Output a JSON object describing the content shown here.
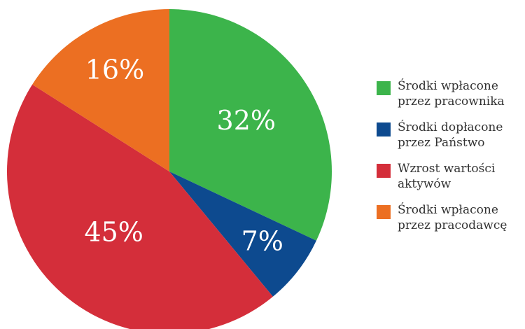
{
  "chart_data": {
    "type": "pie",
    "title": "",
    "slices": [
      {
        "label_lines": [
          "Środki wpłacone",
          "przez pracownika"
        ],
        "value": 32,
        "display": "32%",
        "color": "#3cb44b"
      },
      {
        "label_lines": [
          "Środki dopłacone",
          "przez Państwo"
        ],
        "value": 7,
        "display": "7%",
        "color": "#0d4a8f"
      },
      {
        "label_lines": [
          "Wzrost wartości",
          "aktywów"
        ],
        "value": 45,
        "display": "45%",
        "color": "#d42e3a"
      },
      {
        "label_lines": [
          "Środki wpłacone",
          "przez pracodawcę"
        ],
        "value": 16,
        "display": "16%",
        "color": "#ec6f22"
      }
    ],
    "start": "12 o'clock",
    "direction": "clockwise",
    "legend_position": "right"
  }
}
